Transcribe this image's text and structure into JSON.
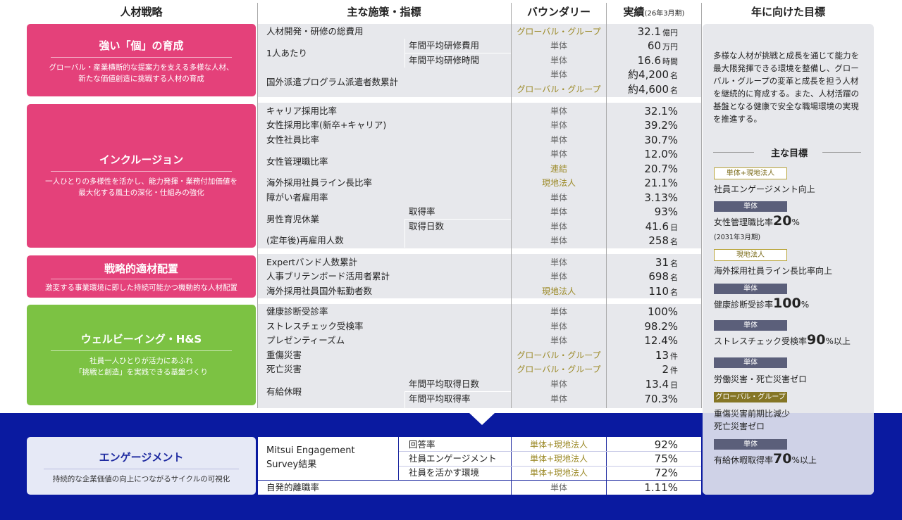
{
  "headers": {
    "strategy": "人材戦略",
    "measures": "主な施策・指標",
    "boundary": "バウンダリー",
    "results": "実績",
    "results_sub": "(26年3月期)",
    "targets": "年に向けた目標"
  },
  "strategies": [
    {
      "title": "強い「個」の育成",
      "desc": "グローバル・産業横断的な提案力を支える多様な人材、\n新たな価値創造に挑戦する人材の育成",
      "color": "#e4417a"
    },
    {
      "title": "インクルージョン",
      "desc": "一人ひとりの多様性を活かし、能力発揮・業務付加価値を\n最大化する風土の深化・仕組みの強化",
      "color": "#e4417a"
    },
    {
      "title": "戦略的適材配置",
      "desc": "激変する事業環境に即した持続可能かつ機動的な人材配置",
      "color": "#e4417a"
    },
    {
      "title": "ウェルビーイング・H&S",
      "desc": "社員一人ひとりが活力にあふれ\n「挑戦と創造」を実践できる基盤づくり",
      "color": "#7cc243"
    },
    {
      "title": "エンゲージメント",
      "desc": "持続的な企業価値の向上につながるサイクルの可視化",
      "color": "#1e2aa0"
    }
  ],
  "rows": [
    {
      "label": "人材開発・研修の総費用",
      "sub": "",
      "boundary": "グローバル・グループ",
      "value": "32.1",
      "unit": "億円"
    },
    {
      "label": "1人あたり",
      "sub": "年間平均研修費用",
      "boundary": "単体",
      "value": "60",
      "unit": "万円"
    },
    {
      "label": "",
      "sub": "年間平均研修時間",
      "boundary": "単体",
      "value": "16.6",
      "unit": "時間"
    },
    {
      "label": "国外派遣プログラム派遣者数累計",
      "sub": "",
      "boundary": "単体",
      "value": "約4,200",
      "unit": "名"
    },
    {
      "label": "",
      "sub": "",
      "boundary": "グローバル・グループ",
      "value": "約4,600",
      "unit": "名"
    },
    {
      "label": "キャリア採用比率",
      "sub": "",
      "boundary": "単体",
      "value": "32.1%",
      "unit": ""
    },
    {
      "label": "女性採用比率(新卒+キャリア)",
      "sub": "",
      "boundary": "単体",
      "value": "39.2%",
      "unit": ""
    },
    {
      "label": "女性社員比率",
      "sub": "",
      "boundary": "単体",
      "value": "30.7%",
      "unit": ""
    },
    {
      "label": "女性管理職比率",
      "sub": "",
      "boundary": "単体",
      "value": "12.0%",
      "unit": ""
    },
    {
      "label": "",
      "sub": "",
      "boundary": "連結",
      "value": "20.7%",
      "unit": ""
    },
    {
      "label": "海外採用社員ライン長比率",
      "sub": "",
      "boundary": "現地法人",
      "value": "21.1%",
      "unit": ""
    },
    {
      "label": "障がい者雇用率",
      "sub": "",
      "boundary": "単体",
      "value": "3.13%",
      "unit": ""
    },
    {
      "label": "男性育児休業",
      "sub": "取得率",
      "boundary": "単体",
      "value": "93%",
      "unit": ""
    },
    {
      "label": "",
      "sub": "取得日数",
      "boundary": "単体",
      "value": "41.6",
      "unit": "日"
    },
    {
      "label": "(定年後)再雇用人数",
      "sub": "",
      "boundary": "単体",
      "value": "258",
      "unit": "名"
    },
    {
      "label": "Expertバンド人数累計",
      "sub": "",
      "boundary": "単体",
      "value": "31",
      "unit": "名"
    },
    {
      "label": "人事ブリテンボード活用者累計",
      "sub": "",
      "boundary": "単体",
      "value": "698",
      "unit": "名"
    },
    {
      "label": "海外採用社員国外転勤者数",
      "sub": "",
      "boundary": "現地法人",
      "value": "110",
      "unit": "名"
    },
    {
      "label": "健康診断受診率",
      "sub": "",
      "boundary": "単体",
      "value": "100%",
      "unit": ""
    },
    {
      "label": "ストレスチェック受検率",
      "sub": "",
      "boundary": "単体",
      "value": "98.2%",
      "unit": ""
    },
    {
      "label": "プレゼンティーズム",
      "sub": "",
      "boundary": "単体",
      "value": "12.4%",
      "unit": ""
    },
    {
      "label": "重傷災害",
      "sub": "",
      "boundary": "グローバル・グループ",
      "value": "13",
      "unit": "件"
    },
    {
      "label": "死亡災害",
      "sub": "",
      "boundary": "グローバル・グループ",
      "value": "2",
      "unit": "件"
    },
    {
      "label": "有給休暇",
      "sub": "年間平均取得日数",
      "boundary": "単体",
      "value": "13.4",
      "unit": "日"
    },
    {
      "label": "",
      "sub": "年間平均取得率",
      "boundary": "単体",
      "value": "70.3%",
      "unit": ""
    }
  ],
  "engagement": {
    "survey_label": "Mitsui Engagement\nSurvey結果",
    "rows": [
      {
        "sub": "回答率",
        "boundary": "単体+現地法人",
        "value": "92%"
      },
      {
        "sub": "社員エンゲージメント",
        "boundary": "単体+現地法人",
        "value": "75%"
      },
      {
        "sub": "社員を活かす環境",
        "boundary": "単体+現地法人",
        "value": "72%"
      }
    ],
    "turnover": {
      "label": "自発的離職率",
      "boundary": "単体",
      "value": "1.11%"
    }
  },
  "targets": {
    "intro": "多様な人材が挑戦と成長を通じて能力を最大限発揮できる環境を整備し、グローバル・グループの変革と成長を担う人材を継続的に育成する。また、人材活躍の基盤となる健康で安全な職場環境の実現を推進する。",
    "goals_heading": "主な目標",
    "items": [
      {
        "tag": "単体+現地法人",
        "tag_style": "outline",
        "text": "社員エンゲージメント向上",
        "big": "",
        "after": "",
        "note": ""
      },
      {
        "tag": "単体",
        "tag_style": "dark",
        "text": "女性管理職比率",
        "big": "20",
        "after": "%",
        "note": "(2031年3月期)"
      },
      {
        "tag": "現地法人",
        "tag_style": "outline",
        "text": "海外採用社員ライン長比率向上",
        "big": "",
        "after": "",
        "note": ""
      },
      {
        "tag": "単体",
        "tag_style": "dark",
        "text": "健康診断受診率",
        "big": "100",
        "after": "%",
        "note": ""
      },
      {
        "tag": "単体",
        "tag_style": "dark",
        "text": "ストレスチェック受検率",
        "big": "90",
        "after": "%以上",
        "note": ""
      },
      {
        "tag": "単体",
        "tag_style": "dark",
        "text": "労働災害・死亡災害ゼロ",
        "big": "",
        "after": "",
        "note": ""
      },
      {
        "tag": "グローバル・グループ",
        "tag_style": "gold",
        "text": "重傷災害前期比減少",
        "big": "",
        "after": "",
        "note": "",
        "text2": "死亡災害ゼロ"
      },
      {
        "tag": "単体",
        "tag_style": "dark",
        "text": "有給休暇取得率",
        "big": "70",
        "after": "%以上",
        "note": ""
      }
    ]
  },
  "colors": {
    "pink": "#e4417a",
    "green": "#7cc243",
    "navy": "#0a1aa0",
    "gold": "#9c8a28"
  }
}
